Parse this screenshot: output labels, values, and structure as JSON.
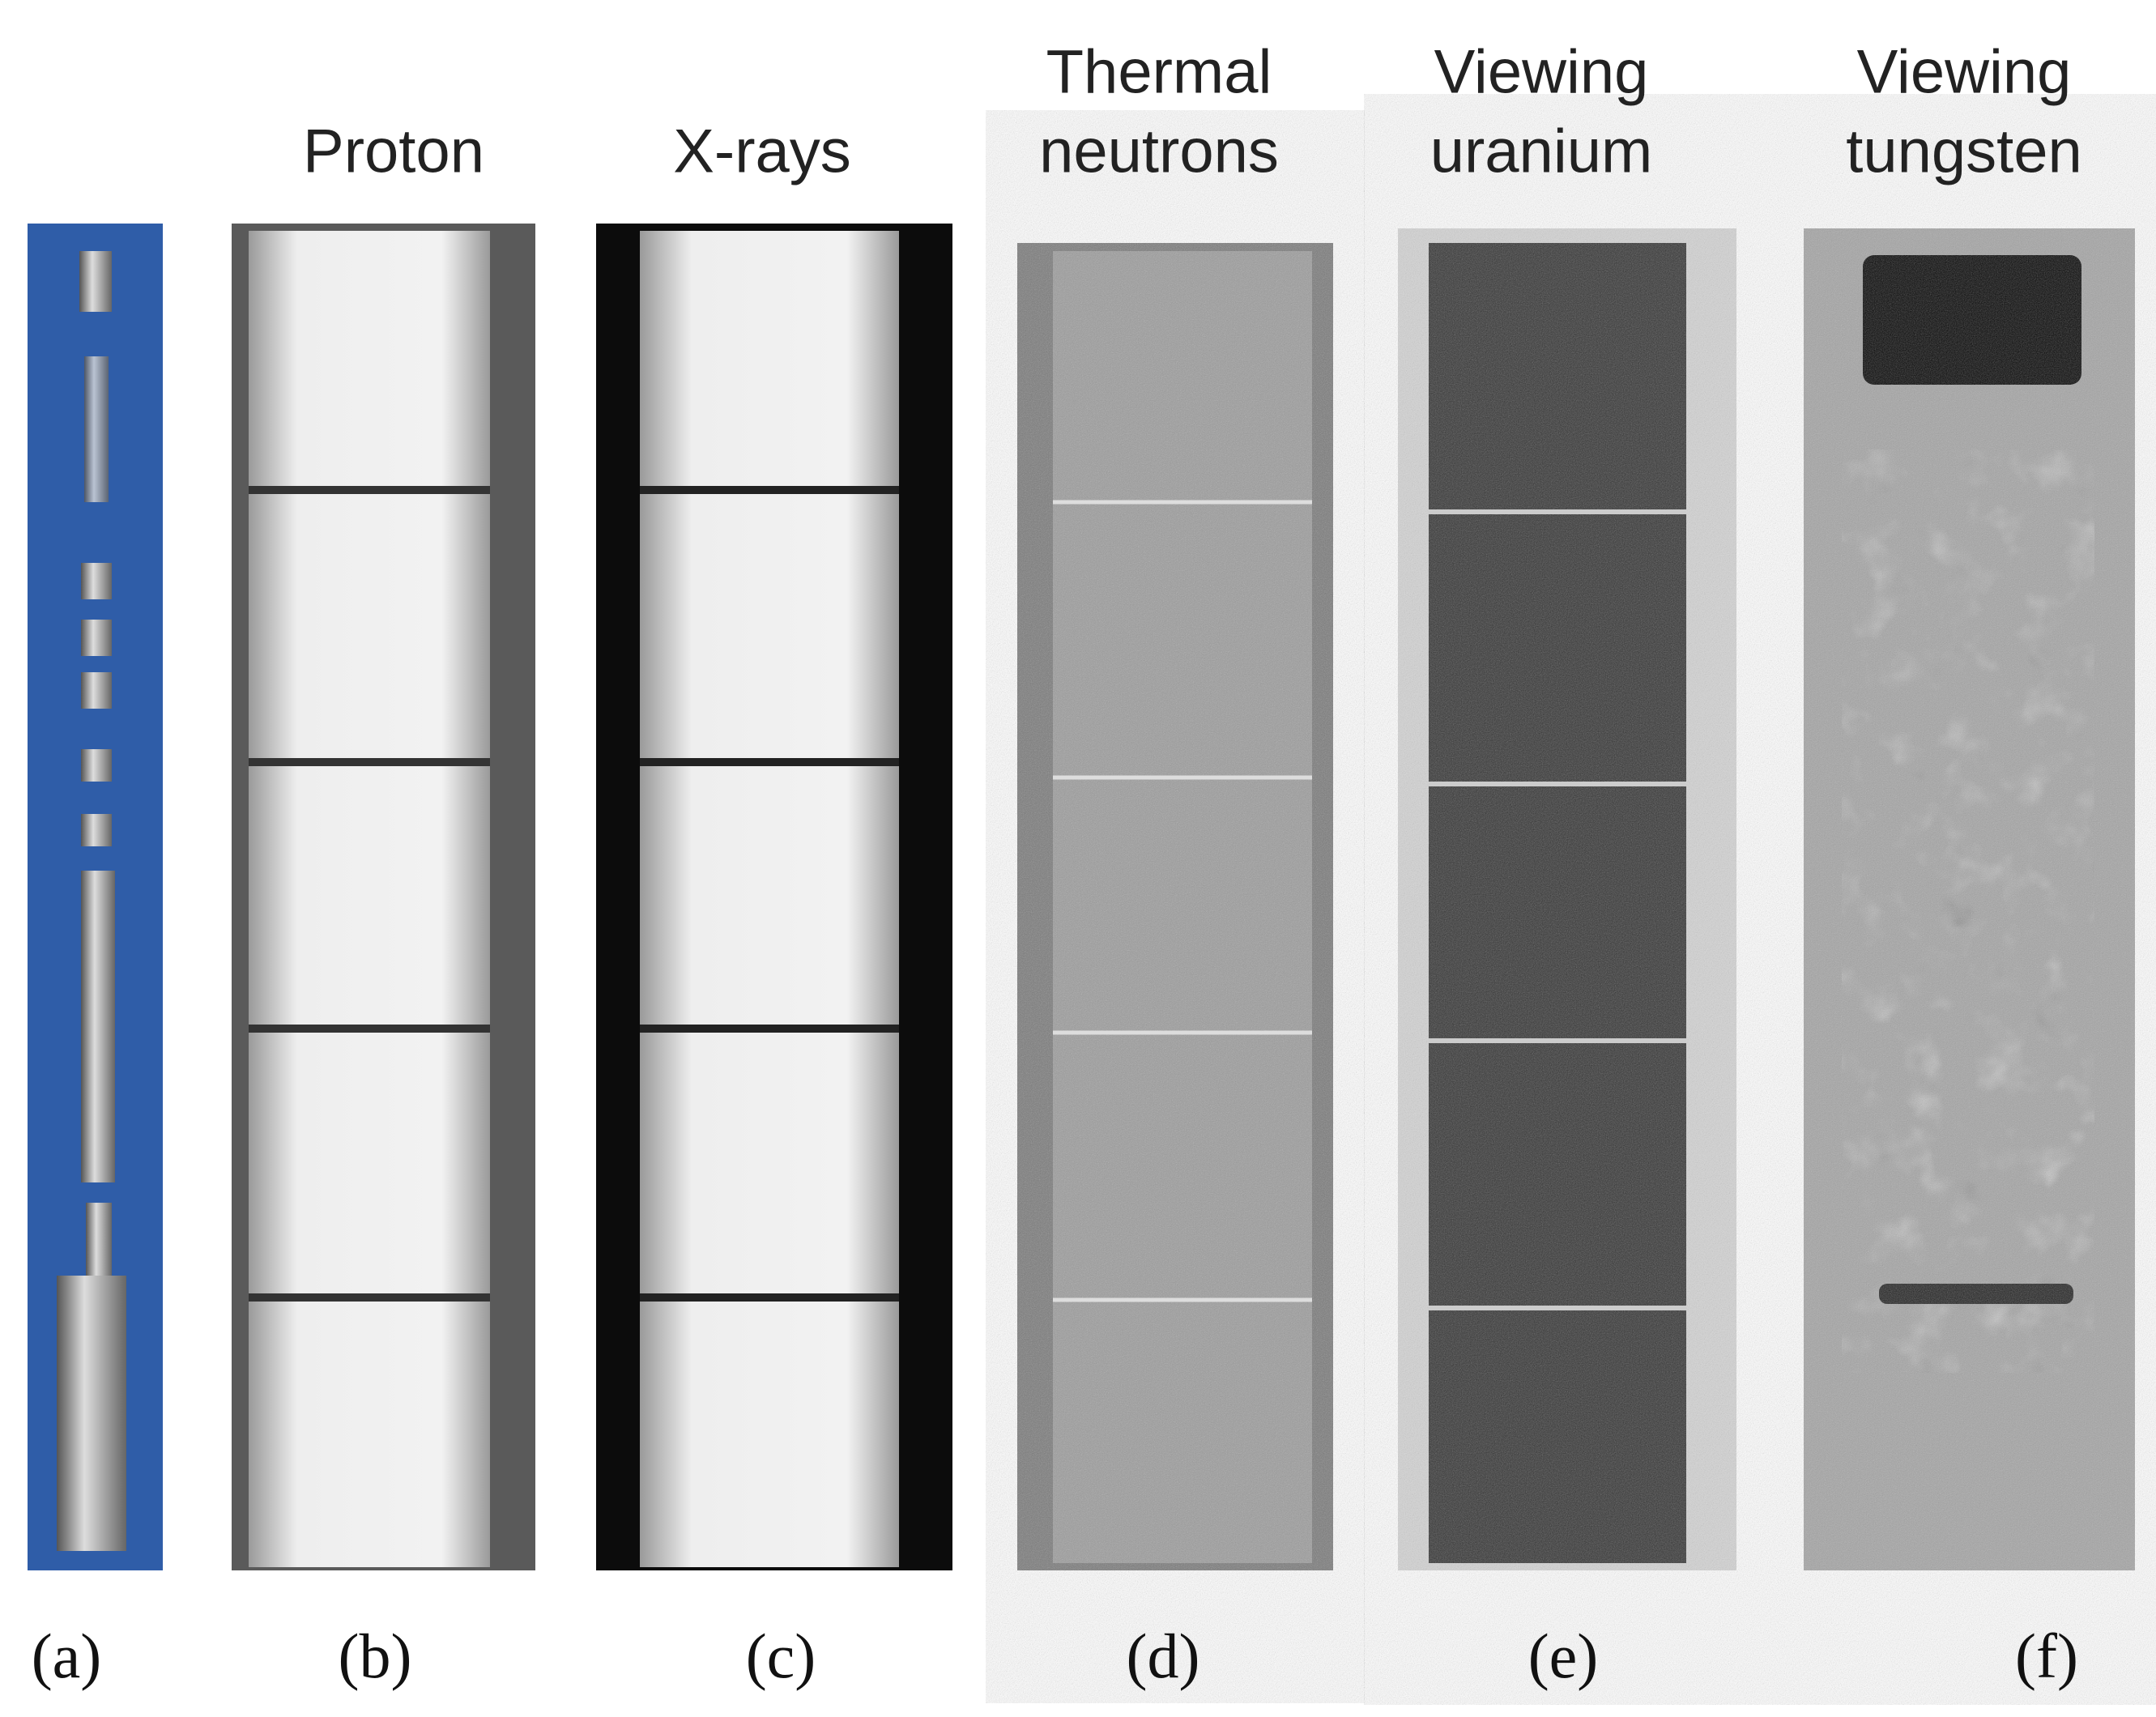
{
  "panels": [
    {
      "title_lines": [],
      "label": "(a)"
    },
    {
      "title_lines": [
        "Proton"
      ],
      "label": "(b)"
    },
    {
      "title_lines": [
        "X-rays"
      ],
      "label": "(c)"
    },
    {
      "title_lines": [
        "Thermal",
        "neutrons"
      ],
      "label": "(d)"
    },
    {
      "title_lines": [
        "Viewing",
        "uranium"
      ],
      "label": "(e)"
    },
    {
      "title_lines": [
        "Viewing",
        "tungsten"
      ],
      "label": "(f)"
    }
  ]
}
